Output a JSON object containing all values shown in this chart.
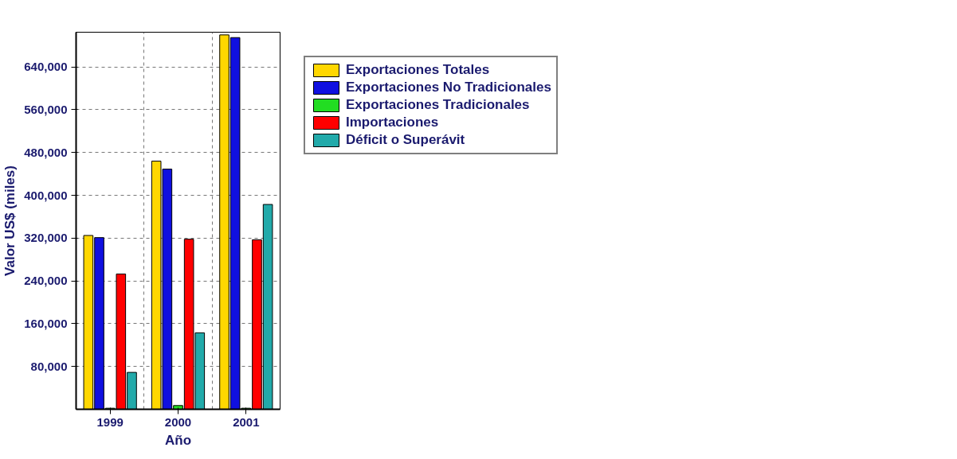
{
  "chart_data": {
    "type": "bar",
    "xlabel": "Año",
    "ylabel": "Valor US$ (miles)",
    "categories": [
      "1999",
      "2000",
      "2001"
    ],
    "series": [
      {
        "name": "Exportaciones Totales",
        "color": "#ffd700",
        "values": [
          325000,
          464000,
          700000
        ]
      },
      {
        "name": "Exportaciones No Tradicionales",
        "color": "#1010e0",
        "values": [
          321000,
          449000,
          695000
        ]
      },
      {
        "name": "Exportaciones Tradicionales",
        "color": "#22dd22",
        "values": [
          2000,
          7000,
          2000
        ]
      },
      {
        "name": "Importaciones",
        "color": "#ff0000",
        "values": [
          253000,
          318000,
          317000
        ]
      },
      {
        "name": "Déficit o Superávit",
        "color": "#22aaaa",
        "values": [
          69000,
          143000,
          383000
        ]
      }
    ],
    "ylim": [
      0,
      705000
    ],
    "yticks": [
      {
        "value": 80000,
        "label": "80,000"
      },
      {
        "value": 160000,
        "label": "160,000"
      },
      {
        "value": 240000,
        "label": "240,000"
      },
      {
        "value": 320000,
        "label": "320,000"
      },
      {
        "value": 400000,
        "label": "400,000"
      },
      {
        "value": 480000,
        "label": "480,000"
      },
      {
        "value": 560000,
        "label": "560,000"
      },
      {
        "value": 640000,
        "label": "640,000"
      }
    ],
    "grid": true,
    "legend": "right"
  }
}
